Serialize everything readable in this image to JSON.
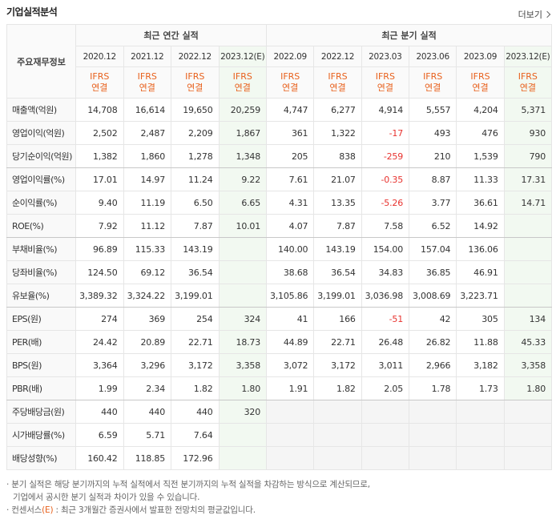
{
  "header": {
    "title": "기업실적분석",
    "more": "더보기"
  },
  "table": {
    "corner": "주요재무정보",
    "groups": [
      "최근 연간 실적",
      "최근 분기 실적"
    ],
    "periods": [
      "2020.12",
      "2021.12",
      "2022.12",
      "2023.12(E)",
      "2022.09",
      "2022.12",
      "2023.03",
      "2023.06",
      "2023.09",
      "2023.12(E)"
    ],
    "basis": [
      [
        "IFRS",
        "연결"
      ],
      [
        "IFRS",
        "연결"
      ],
      [
        "IFRS",
        "연결"
      ],
      [
        "IFRS",
        "연결"
      ],
      [
        "IFRS",
        "연결"
      ],
      [
        "IFRS",
        "연결"
      ],
      [
        "IFRS",
        "연결"
      ],
      [
        "IFRS",
        "연결"
      ],
      [
        "IFRS",
        "연결"
      ],
      [
        "IFRS",
        "연결"
      ]
    ],
    "rows": [
      {
        "label": "매출액(억원)",
        "values": [
          "14,708",
          "16,614",
          "19,650",
          "20,259",
          "4,747",
          "6,277",
          "4,914",
          "5,557",
          "4,204",
          "5,371"
        ]
      },
      {
        "label": "영업이익(억원)",
        "values": [
          "2,502",
          "2,487",
          "2,209",
          "1,867",
          "361",
          "1,322",
          "-17",
          "493",
          "476",
          "930"
        ]
      },
      {
        "label": "당기순이익(억원)",
        "values": [
          "1,382",
          "1,860",
          "1,278",
          "1,348",
          "205",
          "838",
          "-259",
          "210",
          "1,539",
          "790"
        ]
      },
      {
        "label": "영업이익률(%)",
        "values": [
          "17.01",
          "14.97",
          "11.24",
          "9.22",
          "7.61",
          "21.07",
          "-0.35",
          "8.87",
          "11.33",
          "17.31"
        ]
      },
      {
        "label": "순이익률(%)",
        "values": [
          "9.40",
          "11.19",
          "6.50",
          "6.65",
          "4.31",
          "13.35",
          "-5.26",
          "3.77",
          "36.61",
          "14.71"
        ]
      },
      {
        "label": "ROE(%)",
        "values": [
          "7.92",
          "11.12",
          "7.87",
          "10.01",
          "4.07",
          "7.87",
          "7.58",
          "6.52",
          "14.92",
          null
        ]
      },
      {
        "label": "부채비율(%)",
        "values": [
          "96.89",
          "115.33",
          "143.19",
          null,
          "140.00",
          "143.19",
          "154.00",
          "157.04",
          "136.06",
          null
        ]
      },
      {
        "label": "당좌비율(%)",
        "values": [
          "124.50",
          "69.12",
          "36.54",
          null,
          "38.68",
          "36.54",
          "34.83",
          "36.85",
          "46.91",
          null
        ]
      },
      {
        "label": "유보율(%)",
        "values": [
          "3,389.32",
          "3,324.22",
          "3,199.01",
          null,
          "3,105.86",
          "3,199.01",
          "3,036.98",
          "3,008.69",
          "3,223.71",
          null
        ]
      },
      {
        "label": "EPS(원)",
        "values": [
          "274",
          "369",
          "254",
          "324",
          "41",
          "166",
          "-51",
          "42",
          "305",
          "134"
        ]
      },
      {
        "label": "PER(배)",
        "values": [
          "24.42",
          "20.89",
          "22.71",
          "18.73",
          "44.89",
          "22.71",
          "26.48",
          "26.82",
          "11.88",
          "45.33"
        ]
      },
      {
        "label": "BPS(원)",
        "values": [
          "3,364",
          "3,296",
          "3,172",
          "3,358",
          "3,072",
          "3,172",
          "3,011",
          "2,966",
          "3,182",
          "3,358"
        ]
      },
      {
        "label": "PBR(배)",
        "values": [
          "1.99",
          "2.34",
          "1.82",
          "1.80",
          "1.91",
          "1.82",
          "2.05",
          "1.78",
          "1.73",
          "1.80"
        ]
      },
      {
        "label": "주당배당금(원)",
        "values": [
          "440",
          "440",
          "440",
          "320",
          null,
          null,
          null,
          null,
          null,
          null
        ]
      },
      {
        "label": "시가배당률(%)",
        "values": [
          "6.59",
          "5.71",
          "7.64",
          null,
          null,
          null,
          null,
          null,
          null,
          null
        ]
      },
      {
        "label": "배당성향(%)",
        "values": [
          "160.42",
          "118.85",
          "172.96",
          null,
          null,
          null,
          null,
          null,
          null,
          null
        ]
      }
    ]
  },
  "notes": {
    "first": [
      "분기 실적은 해당 분기까지의 누적 실적에서 직전 분기까지의 누적 실적을 차감하는 방식으로 계산되므로,",
      "기업에서 공시한 분기 실적과 차이가 있을 수 있습니다."
    ],
    "second": [
      "컨센서스",
      "(E)",
      " : 최근 3개월간 증권사에서 발표한 전망치의 평균값입니다."
    ]
  }
}
